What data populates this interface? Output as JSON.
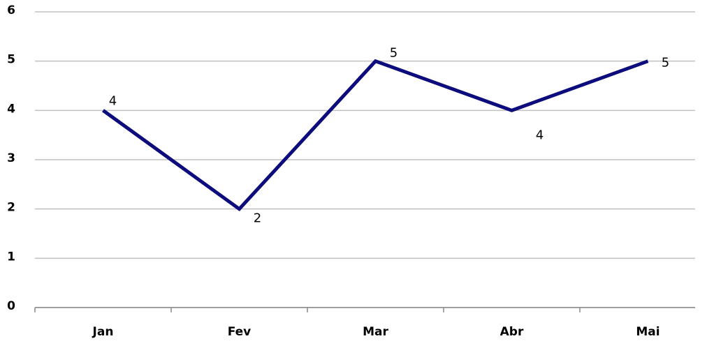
{
  "chart_data": {
    "type": "line",
    "categories": [
      "Jan",
      "Fev",
      "Mar",
      "Abr",
      "Mai"
    ],
    "series": [
      {
        "color": "#0c0c7c",
        "values": [
          4,
          2,
          5,
          4,
          5
        ]
      }
    ],
    "ylim": [
      0,
      6
    ],
    "yticks": [
      0,
      1,
      2,
      3,
      4,
      5,
      6
    ],
    "grid": true,
    "data_labels": true
  }
}
